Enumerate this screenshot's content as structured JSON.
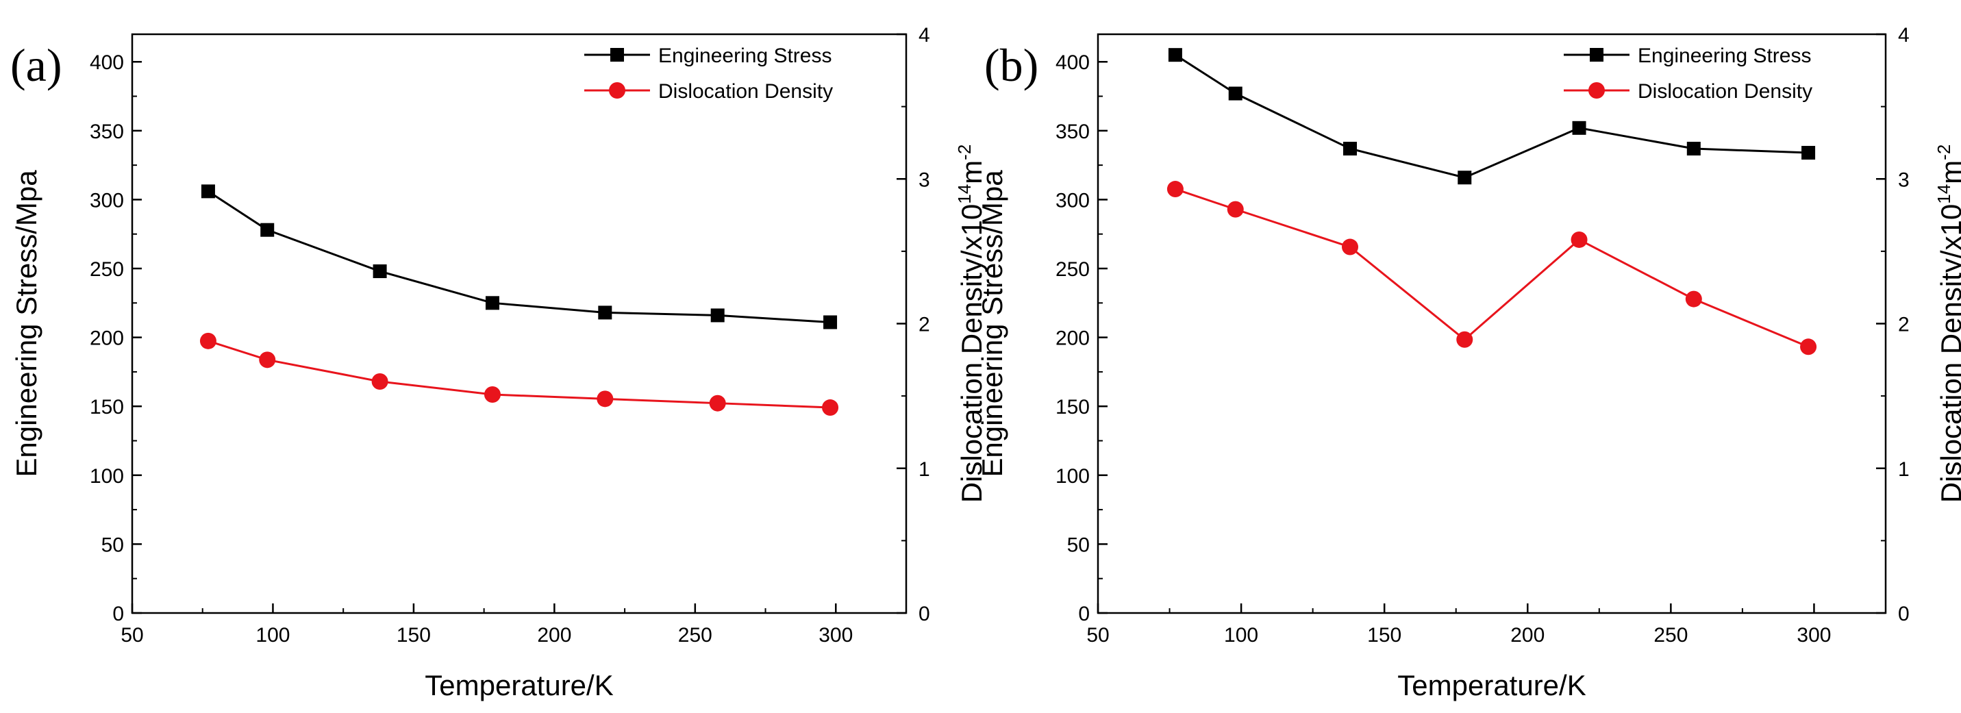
{
  "chart_data": [
    {
      "type": "line",
      "panel_label": "(a)",
      "xlabel": "Temperature/K",
      "ylabel": "Engineering Stress/Mpa",
      "y2label": "Dislocation Density/x10",
      "y2label_exp1": "14",
      "y2label_mid": "m",
      "y2label_exp2": "-2",
      "xlim": [
        50,
        325
      ],
      "ylim": [
        0,
        420
      ],
      "y2lim": [
        0,
        4
      ],
      "xticks": [
        50,
        100,
        150,
        200,
        250,
        300
      ],
      "yticks": [
        0,
        50,
        100,
        150,
        200,
        250,
        300,
        350,
        400
      ],
      "y2ticks": [
        0,
        1,
        2,
        3,
        4
      ],
      "legend_position": "top-right",
      "x": [
        77,
        98,
        138,
        178,
        218,
        258,
        298
      ],
      "series": [
        {
          "name": "Engineering Stress",
          "axis": "left",
          "marker": "square",
          "color": "#000000",
          "values": [
            306,
            278,
            248,
            225,
            218,
            216,
            211
          ]
        },
        {
          "name": "Dislocation Density",
          "axis": "right",
          "marker": "circle",
          "color": "#e8141c",
          "values": [
            1.88,
            1.75,
            1.6,
            1.51,
            1.48,
            1.45,
            1.42
          ]
        }
      ]
    },
    {
      "type": "line",
      "panel_label": "(b)",
      "xlabel": "Temperature/K",
      "ylabel": "Engineering Stress/Mpa",
      "y2label": "Dislocation Density/x10",
      "y2label_exp1": "14",
      "y2label_mid": "m",
      "y2label_exp2": "-2",
      "xlim": [
        50,
        325
      ],
      "ylim": [
        0,
        420
      ],
      "y2lim": [
        0,
        4
      ],
      "xticks": [
        50,
        100,
        150,
        200,
        250,
        300
      ],
      "yticks": [
        0,
        50,
        100,
        150,
        200,
        250,
        300,
        350,
        400
      ],
      "y2ticks": [
        0,
        1,
        2,
        3,
        4
      ],
      "legend_position": "top-right",
      "x": [
        77,
        98,
        138,
        178,
        218,
        258,
        298
      ],
      "series": [
        {
          "name": "Engineering Stress",
          "axis": "left",
          "marker": "square",
          "color": "#000000",
          "values": [
            405,
            377,
            337,
            316,
            352,
            337,
            334
          ]
        },
        {
          "name": "Dislocation Density",
          "axis": "right",
          "marker": "circle",
          "color": "#e8141c",
          "values": [
            2.93,
            2.79,
            2.53,
            1.89,
            2.58,
            2.17,
            1.84
          ]
        }
      ]
    }
  ]
}
